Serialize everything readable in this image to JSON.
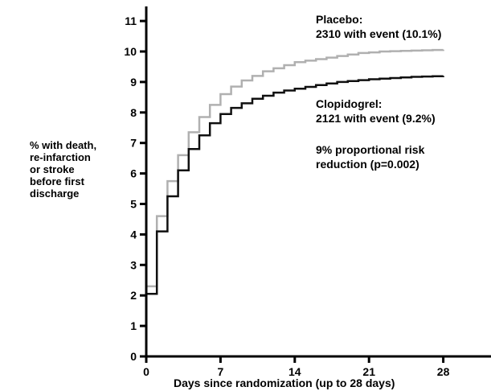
{
  "chart_data": {
    "type": "line",
    "step": true,
    "xlabel": "Days since randomization (up to 28 days)",
    "ylabel_lines": [
      "% with death,",
      "re-infarction",
      "or stroke",
      "before first",
      "discharge"
    ],
    "xlim": [
      0,
      29
    ],
    "ylim": [
      0,
      11
    ],
    "xticks": [
      0,
      7,
      14,
      21,
      28
    ],
    "yticks": [
      0,
      1,
      2,
      3,
      4,
      5,
      6,
      7,
      8,
      9,
      10,
      11
    ],
    "grid": false,
    "legend": "none",
    "series": [
      {
        "name": "Placebo",
        "color": "#b0b0b0",
        "x": [
          0,
          1,
          2,
          3,
          4,
          5,
          6,
          7,
          8,
          9,
          10,
          11,
          12,
          13,
          14,
          15,
          16,
          17,
          18,
          19,
          20,
          21,
          22,
          23,
          24,
          25,
          26,
          27,
          28
        ],
        "y": [
          2.3,
          4.6,
          5.75,
          6.6,
          7.35,
          7.85,
          8.25,
          8.6,
          8.85,
          9.05,
          9.2,
          9.35,
          9.45,
          9.55,
          9.65,
          9.7,
          9.75,
          9.8,
          9.85,
          9.9,
          9.95,
          9.97,
          10.0,
          10.01,
          10.02,
          10.03,
          10.04,
          10.05,
          10.06
        ]
      },
      {
        "name": "Clopidogrel",
        "color": "#101010",
        "x": [
          0,
          1,
          2,
          3,
          4,
          5,
          6,
          7,
          8,
          9,
          10,
          11,
          12,
          13,
          14,
          15,
          16,
          17,
          18,
          19,
          20,
          21,
          22,
          23,
          24,
          25,
          26,
          27,
          28
        ],
        "y": [
          2.05,
          4.1,
          5.25,
          6.1,
          6.8,
          7.25,
          7.65,
          7.95,
          8.15,
          8.3,
          8.45,
          8.55,
          8.65,
          8.72,
          8.78,
          8.84,
          8.9,
          8.95,
          9.0,
          9.03,
          9.06,
          9.09,
          9.11,
          9.13,
          9.15,
          9.17,
          9.18,
          9.19,
          9.2
        ]
      }
    ],
    "annotations": {
      "placebo": [
        "Placebo:",
        "2310 with event (10.1%)"
      ],
      "clopidogrel": [
        "Clopidogrel:",
        "2121 with event (9.2%)"
      ],
      "risk": [
        "9% proportional risk",
        "reduction (p=0.002)"
      ]
    }
  }
}
